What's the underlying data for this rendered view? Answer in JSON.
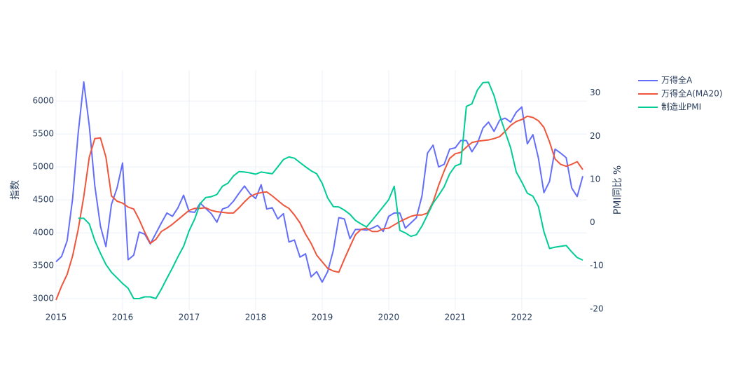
{
  "chart_data": {
    "type": "line",
    "x": [
      2015,
      2015.083,
      2015.167,
      2015.25,
      2015.333,
      2015.417,
      2015.5,
      2015.583,
      2015.667,
      2015.75,
      2015.833,
      2015.917,
      2016,
      2016.083,
      2016.167,
      2016.25,
      2016.333,
      2016.417,
      2016.5,
      2016.583,
      2016.667,
      2016.75,
      2016.833,
      2016.917,
      2017,
      2017.083,
      2017.167,
      2017.25,
      2017.333,
      2017.417,
      2017.5,
      2017.583,
      2017.667,
      2017.75,
      2017.833,
      2017.917,
      2018,
      2018.083,
      2018.167,
      2018.25,
      2018.333,
      2018.417,
      2018.5,
      2018.583,
      2018.667,
      2018.75,
      2018.833,
      2018.917,
      2019,
      2019.083,
      2019.167,
      2019.25,
      2019.333,
      2019.417,
      2019.5,
      2019.583,
      2019.667,
      2019.75,
      2019.833,
      2019.917,
      2020,
      2020.083,
      2020.167,
      2020.25,
      2020.333,
      2020.417,
      2020.5,
      2020.583,
      2020.667,
      2020.75,
      2020.833,
      2020.917,
      2021,
      2021.083,
      2021.167,
      2021.25,
      2021.333,
      2021.417,
      2021.5,
      2021.583,
      2021.667,
      2021.75,
      2021.833,
      2021.917,
      2022,
      2022.083,
      2022.167,
      2022.25,
      2022.333,
      2022.417,
      2022.5,
      2022.583,
      2022.667,
      2022.75,
      2022.833,
      2022.917
    ],
    "series": [
      {
        "name": "万得全A",
        "color": "#636efa",
        "values": [
          3560,
          3640,
          3880,
          4520,
          5510,
          6290,
          5620,
          4710,
          4100,
          3790,
          4430,
          4680,
          5060,
          3590,
          3660,
          4010,
          3980,
          3830,
          3990,
          4150,
          4300,
          4250,
          4380,
          4570,
          4320,
          4310,
          4450,
          4370,
          4290,
          4160,
          4360,
          4390,
          4480,
          4600,
          4710,
          4590,
          4520,
          4730,
          4360,
          4380,
          4210,
          4290,
          3860,
          3890,
          3630,
          3680,
          3330,
          3410,
          3250,
          3410,
          3730,
          4230,
          4210,
          3910,
          4050,
          4050,
          4040,
          4070,
          4110,
          4020,
          4250,
          4300,
          4300,
          4070,
          4150,
          4230,
          4560,
          5210,
          5330,
          5000,
          5040,
          5270,
          5290,
          5400,
          5400,
          5230,
          5360,
          5590,
          5680,
          5540,
          5710,
          5740,
          5680,
          5830,
          5910,
          5350,
          5490,
          5130,
          4610,
          4780,
          5270,
          5210,
          5140,
          4680,
          4550,
          4860
        ]
      },
      {
        "name": "万得全A(MA20)",
        "color": "#EF553B",
        "values": [
          2980,
          3190,
          3370,
          3650,
          4050,
          4550,
          5150,
          5430,
          5440,
          5150,
          4560,
          4480,
          4450,
          4390,
          4360,
          4200,
          4010,
          3840,
          3900,
          4020,
          4070,
          4130,
          4200,
          4270,
          4340,
          4370,
          4370,
          4380,
          4340,
          4320,
          4310,
          4300,
          4300,
          4380,
          4470,
          4550,
          4590,
          4610,
          4620,
          4560,
          4490,
          4420,
          4370,
          4270,
          4150,
          3980,
          3840,
          3660,
          3560,
          3460,
          3420,
          3400,
          3600,
          3790,
          3970,
          4050,
          4070,
          4020,
          4020,
          4060,
          4070,
          4120,
          4170,
          4210,
          4250,
          4270,
          4270,
          4300,
          4470,
          4720,
          4940,
          5130,
          5200,
          5220,
          5300,
          5370,
          5390,
          5400,
          5410,
          5430,
          5460,
          5540,
          5630,
          5690,
          5720,
          5770,
          5750,
          5700,
          5600,
          5380,
          5120,
          5040,
          5010,
          5040,
          5080,
          4960
        ]
      },
      {
        "name": "制造业PMI",
        "color": "#00cc96",
        "axis": "y2",
        "values": [
          null,
          null,
          null,
          null,
          1.0,
          1.0,
          -0.3,
          -4.2,
          -7.1,
          -9.7,
          -11.5,
          -12.8,
          -14.1,
          -15.2,
          -17.6,
          -17.6,
          -17.2,
          -17.2,
          -17.6,
          -15.4,
          -12.9,
          -10.5,
          -7.9,
          -5.5,
          -1.9,
          0.8,
          4.4,
          5.8,
          6.0,
          6.5,
          8.4,
          9.1,
          10.8,
          11.8,
          11.7,
          11.5,
          11.2,
          11.7,
          11.5,
          11.3,
          12.9,
          14.6,
          15.2,
          14.9,
          13.9,
          12.9,
          12.0,
          11.3,
          9.1,
          5.7,
          3.7,
          3.6,
          2.9,
          1.9,
          0.5,
          -0.3,
          -1.0,
          0.5,
          2.1,
          3.7,
          5.3,
          8.4,
          -1.8,
          -2.4,
          -3.2,
          -2.8,
          -0.8,
          1.8,
          4.5,
          6.3,
          8.3,
          11.3,
          13.1,
          13.6,
          26.9,
          27.5,
          30.7,
          32.4,
          32.5,
          29.4,
          24.8,
          21.0,
          17.3,
          11.7,
          9.4,
          6.8,
          6.1,
          3.7,
          -2.1,
          -6.0,
          -5.7,
          -5.5,
          -5.3,
          -6.8,
          -8.1,
          -8.7
        ]
      }
    ],
    "ylabel": "指数",
    "y2label": "PMI同比 %",
    "xlim": [
      2015,
      2022.98
    ],
    "xticks": [
      2015,
      2016,
      2017,
      2018,
      2019,
      2020,
      2021,
      2022
    ],
    "ylim": [
      2830,
      6470
    ],
    "yticks": [
      3000,
      3500,
      4000,
      4500,
      5000,
      5500,
      6000
    ],
    "y2lim": [
      -20.2,
      35.3
    ],
    "y2ticks": [
      -20,
      -10,
      0,
      10,
      20,
      30
    ],
    "grid": true,
    "legend": "right"
  }
}
